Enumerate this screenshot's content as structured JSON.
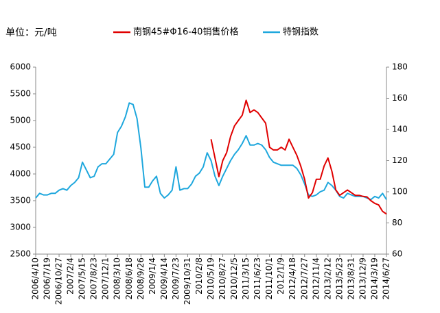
{
  "chart_data": {
    "type": "line",
    "unit_label": "单位：元/吨",
    "categories": [
      "2006/4/10",
      null,
      null,
      "2006/7/19",
      null,
      null,
      "2006/10/27",
      null,
      null,
      "2007/2/4",
      null,
      null,
      "2007/5/15",
      null,
      null,
      "2007/8/23",
      null,
      null,
      "2007/12/1",
      null,
      null,
      "2008/3/10",
      null,
      null,
      "2008/6/18",
      null,
      null,
      "2008/9/26",
      null,
      null,
      "2009/1/4",
      null,
      null,
      "2009/4/14",
      null,
      null,
      "2009/7/23",
      null,
      null,
      "2009/10/31",
      null,
      null,
      "2010/2/8",
      null,
      null,
      "2010/5/19",
      null,
      null,
      "2010/8/27",
      null,
      null,
      "2010/12/5",
      null,
      null,
      "2011/3/15",
      null,
      null,
      "2011/6/23",
      null,
      null,
      "2011/10/1",
      null,
      null,
      "2012/1/9",
      null,
      null,
      "2012/4/18",
      null,
      null,
      "2012/7/27",
      null,
      null,
      "2012/11/4",
      null,
      null,
      "2013/2/12",
      null,
      null,
      "2013/5/23",
      null,
      null,
      "2013/8/31",
      null,
      null,
      "2013/12/9",
      null,
      null,
      "2014/3/19",
      null,
      null,
      "2014/6/27"
    ],
    "series": [
      {
        "name": "南钢45#Φ16-40销售价格",
        "color": "#e00000",
        "axis": "y",
        "values": [
          null,
          null,
          null,
          null,
          null,
          null,
          null,
          null,
          null,
          null,
          null,
          null,
          null,
          null,
          null,
          null,
          null,
          null,
          null,
          null,
          null,
          null,
          null,
          null,
          null,
          null,
          null,
          null,
          null,
          null,
          null,
          null,
          null,
          null,
          null,
          null,
          null,
          null,
          null,
          null,
          null,
          null,
          null,
          null,
          null,
          4650,
          4300,
          3950,
          4250,
          4400,
          4700,
          4900,
          5000,
          5100,
          5380,
          5150,
          5200,
          5150,
          5050,
          4950,
          4500,
          4450,
          4450,
          4500,
          4450,
          4650,
          4500,
          4350,
          4150,
          3900,
          3550,
          3650,
          3900,
          3900,
          4150,
          4300,
          4050,
          3700,
          3600,
          3650,
          3700,
          3650,
          3600,
          3600,
          3580,
          3570,
          3500,
          3450,
          3420,
          3300,
          3250
        ]
      },
      {
        "name": "特钢指数",
        "color": "#1ea7dd",
        "axis": "y2",
        "values": [
          96,
          99,
          98,
          98,
          99,
          99,
          101,
          102,
          101,
          104,
          106,
          109,
          119,
          114,
          109,
          110,
          116,
          118,
          118,
          121,
          124,
          138,
          142,
          148,
          157,
          156,
          147,
          128,
          103,
          103,
          107,
          110,
          99,
          96,
          98,
          101,
          116,
          101,
          102,
          102,
          105,
          110,
          112,
          116,
          125,
          120,
          110,
          104,
          110,
          115,
          120,
          124,
          127,
          131,
          136,
          130,
          130,
          131,
          130,
          127,
          122,
          119,
          118,
          117,
          117,
          117,
          117,
          115,
          111,
          105,
          98,
          97,
          98,
          100,
          101,
          106,
          104,
          101,
          97,
          96,
          99,
          98,
          97,
          97,
          97,
          96,
          95,
          97,
          96,
          99,
          95
        ]
      }
    ],
    "ylim": [
      2500,
      6000
    ],
    "yticks": [
      2500,
      3000,
      3500,
      4000,
      4500,
      5000,
      5500,
      6000
    ],
    "y2lim": [
      60,
      180
    ],
    "y2ticks": [
      60,
      80,
      100,
      120,
      140,
      160,
      180
    ],
    "grid": false
  }
}
